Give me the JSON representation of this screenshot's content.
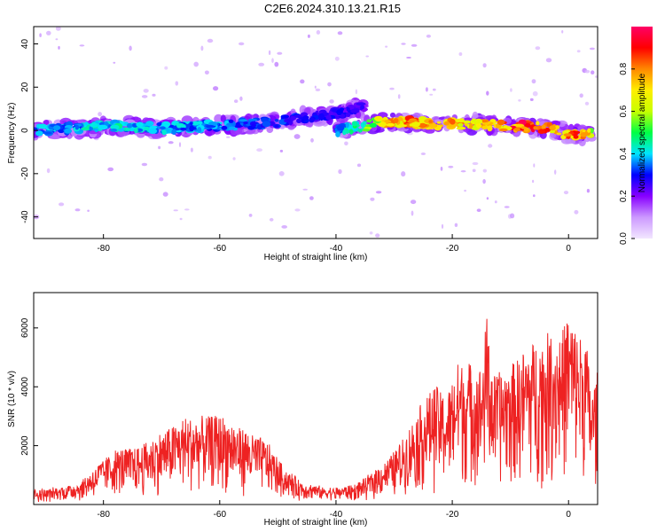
{
  "figure_title": "C2E6.2024.310.13.21.R15",
  "chart_data": [
    {
      "type": "heatmap",
      "title": "",
      "xlabel": "Height of straight line (km)",
      "ylabel": "Frequency (Hz)",
      "xlim": [
        -92,
        5
      ],
      "ylim": [
        -50,
        48
      ],
      "x_ticks": [
        -80,
        -60,
        -40,
        -20,
        0
      ],
      "y_ticks": [
        -40,
        -20,
        0,
        20,
        40
      ],
      "colorbar": {
        "label": "Normalized spectral amplitude",
        "range": [
          0,
          1
        ],
        "ticks": [
          0.0,
          0.2,
          0.4,
          0.6,
          0.8
        ],
        "colors": [
          "#f2e6ff",
          "#cc99ff",
          "#8800ff",
          "#0000ff",
          "#00e5ff",
          "#00ff44",
          "#c8ff00",
          "#ffee00",
          "#ff8800",
          "#ff0000",
          "#ff0066"
        ]
      },
      "ridges": [
        {
          "name": "",
          "x": [
            -92,
            -85,
            -78,
            -70,
            -62,
            -55,
            -50,
            -46,
            -42,
            -38,
            -35
          ],
          "y": [
            0,
            1,
            2,
            1,
            2,
            3,
            4,
            6,
            7,
            9,
            11
          ],
          "amplitude": [
            0.38,
            0.42,
            0.45,
            0.42,
            0.4,
            0.36,
            0.34,
            0.32,
            0.3,
            0.28,
            0.26
          ]
        },
        {
          "name": "",
          "x": [
            -40,
            -35,
            -32,
            -28,
            -24,
            -20,
            -16,
            -12,
            -8,
            -4,
            -2,
            0,
            2,
            4
          ],
          "y": [
            0,
            2,
            4,
            4,
            3,
            3,
            3,
            2,
            2,
            1,
            0,
            -2,
            -2,
            -2
          ],
          "amplitude": [
            0.4,
            0.55,
            0.75,
            0.85,
            0.82,
            0.8,
            0.78,
            0.85,
            0.95,
            0.88,
            0.82,
            0.9,
            0.85,
            0.7
          ]
        }
      ]
    },
    {
      "type": "line",
      "title": "",
      "xlabel": "Height of straight line (km)",
      "ylabel": "SNR (10 * v/v)",
      "xlim": [
        -92,
        5
      ],
      "ylim": [
        0,
        7200
      ],
      "x_ticks": [
        -80,
        -60,
        -40,
        -20,
        0
      ],
      "y_ticks": [
        2000,
        4000,
        6000
      ],
      "color": "#ee2222",
      "envelope": {
        "x": [
          -92,
          -88,
          -84,
          -81,
          -78,
          -74,
          -70,
          -66,
          -63,
          -60,
          -56,
          -52,
          -49,
          -46,
          -42,
          -40,
          -37,
          -35,
          -33,
          -31,
          -29,
          -27,
          -25,
          -23,
          -21,
          -19,
          -17,
          -15,
          -14,
          -13,
          -11,
          -9,
          -7,
          -5,
          -3,
          -1,
          0,
          1,
          3,
          4,
          5
        ],
        "y": [
          400,
          500,
          700,
          1300,
          1800,
          1900,
          2400,
          2900,
          2900,
          3000,
          2500,
          2100,
          1200,
          700,
          500,
          500,
          600,
          800,
          1200,
          1500,
          2000,
          2700,
          3500,
          4000,
          3600,
          4800,
          4800,
          4600,
          6500,
          4300,
          4600,
          4800,
          5400,
          5600,
          5800,
          5900,
          6600,
          6000,
          5600,
          3800,
          4500
        ]
      }
    }
  ]
}
